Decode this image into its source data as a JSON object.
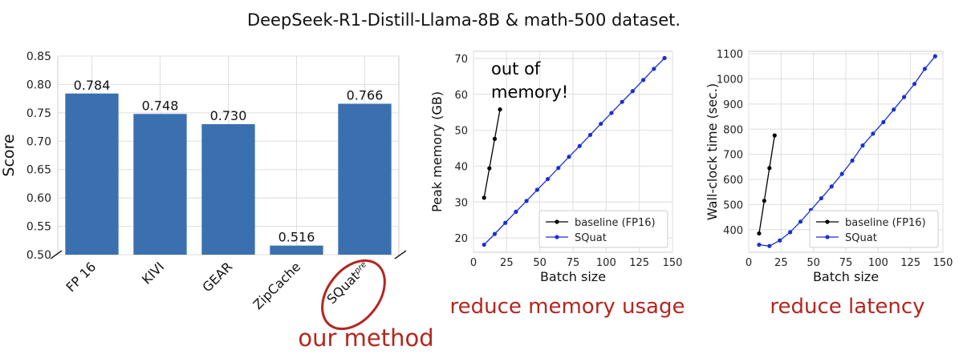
{
  "figure": {
    "suptitle": "DeepSeek-R1-Distill-Llama-8B & math-500 dataset.",
    "accent_color": "#b5261e",
    "bar_color": "#3a70b0",
    "baseline_color": "#000000",
    "squat_color": "#1a2fd6"
  },
  "chart_data": [
    {
      "type": "bar",
      "categories": [
        "FP 16",
        "KIVI",
        "GEAR",
        "ZipCache",
        "SQuat"
      ],
      "category_superscripts": [
        "",
        "",
        "",
        "",
        "pre"
      ],
      "values": [
        0.784,
        0.748,
        0.73,
        0.516,
        0.766
      ],
      "value_labels": [
        "0.784",
        "0.748",
        "0.730",
        "0.516",
        "0.766"
      ],
      "ylabel": "Score",
      "ylim": [
        0.5,
        0.85
      ],
      "yticks": [
        "0.50",
        "0.55",
        "0.60",
        "0.65",
        "0.70",
        "0.75",
        "0.80",
        "0.85"
      ],
      "grid": true,
      "highlight_category": "SQuat",
      "annotation": "our method"
    },
    {
      "type": "line",
      "xlabel": "Batch size",
      "ylabel": "Peak memory (GB)",
      "xlim": [
        0,
        150
      ],
      "ylim": [
        16,
        72
      ],
      "xticks": [
        "0",
        "25",
        "50",
        "75",
        "100",
        "125",
        "150"
      ],
      "yticks": [
        "20",
        "30",
        "40",
        "50",
        "60",
        "70"
      ],
      "grid": true,
      "legend_position": "lower-right",
      "series": [
        {
          "name": "baseline (FP16)",
          "x": [
            8,
            12,
            16,
            20
          ],
          "y": [
            31.2,
            39.4,
            47.6,
            55.8
          ]
        },
        {
          "name": "SQuat",
          "x": [
            8,
            16,
            24,
            32,
            40,
            48,
            56,
            64,
            72,
            80,
            88,
            96,
            104,
            112,
            120,
            128,
            136,
            144
          ],
          "y": [
            18.1,
            21.1,
            24.2,
            27.3,
            30.3,
            33.4,
            36.4,
            39.5,
            42.6,
            45.6,
            48.7,
            51.8,
            54.8,
            57.9,
            60.9,
            64.0,
            67.1,
            70.1
          ]
        }
      ],
      "inset_text": [
        "out of",
        "memory!"
      ],
      "caption": "reduce memory usage"
    },
    {
      "type": "line",
      "xlabel": "Batch size",
      "ylabel": "Wall-clock time (sec.)",
      "xlim": [
        0,
        150
      ],
      "ylim": [
        310,
        1110
      ],
      "xticks": [
        "0",
        "25",
        "50",
        "75",
        "100",
        "125",
        "150"
      ],
      "yticks": [
        "400",
        "500",
        "600",
        "700",
        "800",
        "900",
        "1000",
        "1100"
      ],
      "grid": true,
      "legend_position": "lower-right",
      "series": [
        {
          "name": "baseline (FP16)",
          "x": [
            8,
            12,
            16,
            20
          ],
          "y": [
            385,
            515,
            645,
            775
          ]
        },
        {
          "name": "SQuat",
          "x": [
            8,
            16,
            24,
            32,
            40,
            48,
            56,
            64,
            72,
            80,
            88,
            96,
            104,
            112,
            120,
            128,
            136,
            144
          ],
          "y": [
            340,
            335,
            357,
            390,
            432,
            478,
            525,
            572,
            622,
            675,
            735,
            782,
            828,
            878,
            928,
            980,
            1040,
            1090
          ]
        }
      ],
      "caption": "reduce latency"
    }
  ]
}
